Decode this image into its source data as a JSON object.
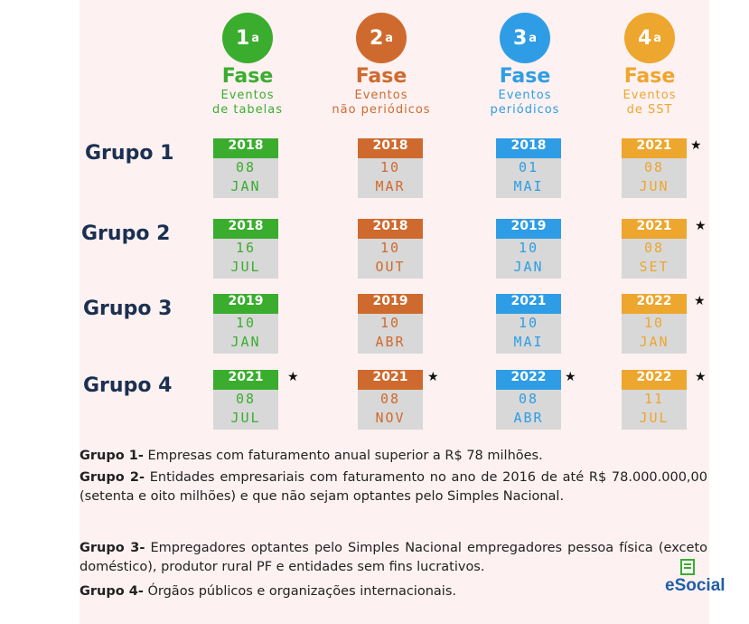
{
  "colors": {
    "phase1": "#3aad2e",
    "phase2": "#cf6a2e",
    "phase3": "#2e9de5",
    "phase4": "#eda62e"
  },
  "phases": [
    {
      "num": "1",
      "sup": "a",
      "title": "Fase",
      "line1": "Eventos",
      "line2": "de tabelas"
    },
    {
      "num": "2",
      "sup": "a",
      "title": "Fase",
      "line1": "Eventos",
      "line2": "não periódicos"
    },
    {
      "num": "3",
      "sup": "a",
      "title": "Fase",
      "line1": "Eventos",
      "line2": "periódicos"
    },
    {
      "num": "4",
      "sup": "a",
      "title": "Fase",
      "line1": "Eventos",
      "line2": "de SST"
    }
  ],
  "groups": [
    {
      "label": "Grupo 1",
      "dates": [
        {
          "year": "2018",
          "day": "08",
          "month": "JAN"
        },
        {
          "year": "2018",
          "day": "10",
          "month": "MAR"
        },
        {
          "year": "2018",
          "day": "01",
          "month": "MAI"
        },
        {
          "year": "2021",
          "day": "08",
          "month": "JUN",
          "star": "★"
        }
      ]
    },
    {
      "label": "Grupo 2",
      "dates": [
        {
          "year": "2018",
          "day": "16",
          "month": "JUL"
        },
        {
          "year": "2018",
          "day": "10",
          "month": "OUT"
        },
        {
          "year": "2019",
          "day": "10",
          "month": "JAN"
        },
        {
          "year": "2021",
          "day": "08",
          "month": "SET",
          "star": "★"
        }
      ]
    },
    {
      "label": "Grupo 3",
      "dates": [
        {
          "year": "2019",
          "day": "10",
          "month": "JAN"
        },
        {
          "year": "2019",
          "day": "10",
          "month": "ABR"
        },
        {
          "year": "2021",
          "day": "10",
          "month": "MAI"
        },
        {
          "year": "2022",
          "day": "10",
          "month": "JAN",
          "star": "★"
        }
      ]
    },
    {
      "label": "Grupo 4",
      "dates": [
        {
          "year": "2021",
          "day": "08",
          "month": "JUL",
          "star": "★"
        },
        {
          "year": "2021",
          "day": "08",
          "month": "NOV",
          "star": "★"
        },
        {
          "year": "2022",
          "day": "08",
          "month": "ABR",
          "star": "★"
        },
        {
          "year": "2022",
          "day": "11",
          "month": "JUL",
          "star": "★"
        }
      ]
    }
  ],
  "legend": [
    {
      "head": "Grupo 1-",
      "text": " Empresas com faturamento anual superior a R$ 78 milhões."
    },
    {
      "head": "Grupo 2-",
      "text": " Entidades empresariais com faturamento no ano de 2016 de até R$ 78.000.000,00 (setenta e oito milhões) e que não sejam optantes pelo Simples Nacional."
    },
    {
      "head": "Grupo 3-",
      "text": " Empregadores optantes pelo Simples Nacional empregadores pessoa física (exceto doméstico), produtor rural PF e entidades sem fins lucrativos."
    },
    {
      "head": "Grupo 4-",
      "text": " Órgãos públicos e organizações internacionais."
    }
  ],
  "logo": {
    "text": "eSocial"
  }
}
